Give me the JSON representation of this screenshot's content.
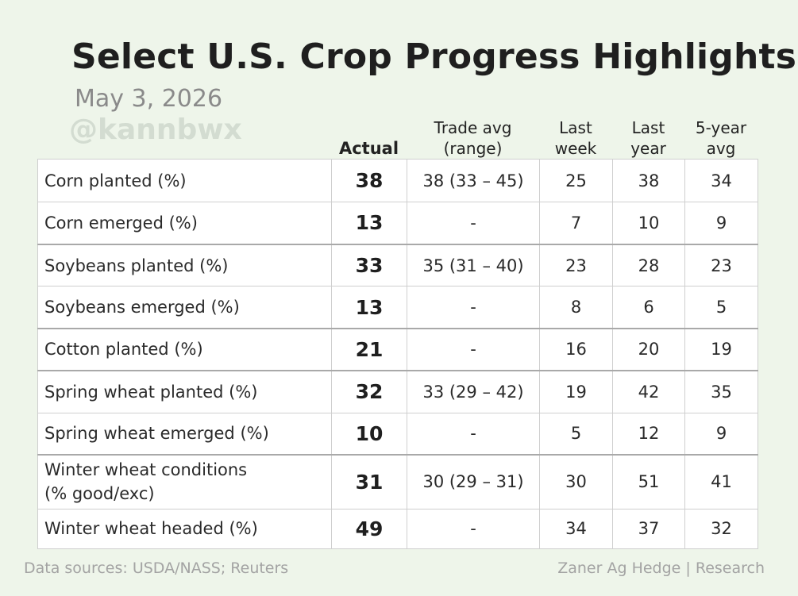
{
  "chart_data": {
    "type": "table",
    "title": "Select U.S. Crop Progress Highlights",
    "subtitle": "May 3, 2026",
    "watermark": "@kannbwx",
    "columns": [
      "Actual",
      "Trade avg\n(range)",
      "Last\nweek",
      "Last\nyear",
      "5-year\navg"
    ],
    "rows": [
      {
        "label": "Corn planted (%)",
        "actual": "38",
        "trade_avg": "38 (33 – 45)",
        "last_week": "25",
        "last_year": "38",
        "five_year_avg": "34",
        "group_start": true
      },
      {
        "label": "Corn emerged (%)",
        "actual": "13",
        "trade_avg": "-",
        "last_week": "7",
        "last_year": "10",
        "five_year_avg": "9",
        "group_start": false
      },
      {
        "label": "Soybeans planted (%)",
        "actual": "33",
        "trade_avg": "35 (31 – 40)",
        "last_week": "23",
        "last_year": "28",
        "five_year_avg": "23",
        "group_start": true
      },
      {
        "label": "Soybeans emerged (%)",
        "actual": "13",
        "trade_avg": "-",
        "last_week": "8",
        "last_year": "6",
        "five_year_avg": "5",
        "group_start": false
      },
      {
        "label": "Cotton planted (%)",
        "actual": "21",
        "trade_avg": "-",
        "last_week": "16",
        "last_year": "20",
        "five_year_avg": "19",
        "group_start": true
      },
      {
        "label": "Spring wheat planted (%)",
        "actual": "32",
        "trade_avg": "33 (29 – 42)",
        "last_week": "19",
        "last_year": "42",
        "five_year_avg": "35",
        "group_start": true
      },
      {
        "label": "Spring wheat emerged (%)",
        "actual": "10",
        "trade_avg": "-",
        "last_week": "5",
        "last_year": "12",
        "five_year_avg": "9",
        "group_start": false
      },
      {
        "label": "Winter wheat conditions\n(% good/exc)",
        "actual": "31",
        "trade_avg": "30 (29 – 31)",
        "last_week": "30",
        "last_year": "51",
        "five_year_avg": "41",
        "group_start": true
      },
      {
        "label": "Winter wheat headed (%)",
        "actual": "49",
        "trade_avg": "-",
        "last_week": "34",
        "last_year": "37",
        "five_year_avg": "32",
        "group_start": false
      }
    ],
    "sources": "Data sources: USDA/NASS; Reuters",
    "credit": "Zaner Ag Hedge | Research",
    "colors": {
      "background": "#eef5ea",
      "table_bg": "#ffffff",
      "grid": "#cfcfcf",
      "group_border": "#a9a9a9",
      "footer_text": "#a3a3a3"
    }
  }
}
